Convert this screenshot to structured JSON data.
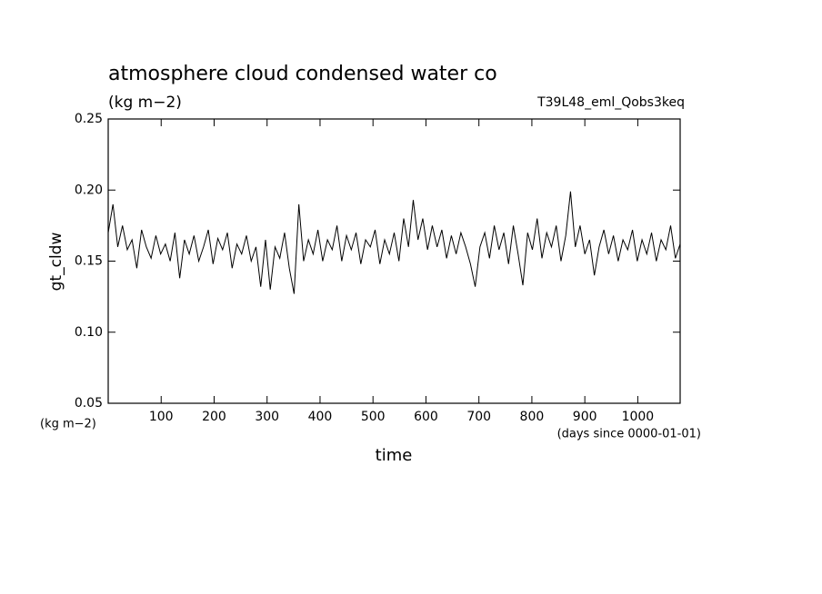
{
  "chart_data": {
    "type": "line",
    "title": "atmosphere cloud condensed water co",
    "subtitle": "(kg m−2)",
    "run_label": "T39L48_eml_Qobs3keq",
    "y_label": "gt_cldw",
    "x_label": "time",
    "y_unit": "(kg m−2)",
    "x_unit": "(days since 0000-01-01)",
    "xlim": [
      0,
      1080
    ],
    "ylim": [
      0.05,
      0.25
    ],
    "xticks": [
      100,
      200,
      300,
      400,
      500,
      600,
      700,
      800,
      900,
      1000
    ],
    "yticks": [
      0.05,
      {
        "value": 0.1,
        "label": "0.10"
      },
      0.15,
      {
        "value": 0.2,
        "label": "0.20"
      },
      0.25
    ],
    "x": [
      0,
      9,
      18,
      27,
      36,
      45,
      54,
      63,
      72,
      81,
      90,
      99,
      108,
      117,
      126,
      135,
      144,
      153,
      162,
      171,
      180,
      189,
      198,
      207,
      216,
      225,
      234,
      243,
      252,
      261,
      270,
      279,
      288,
      297,
      306,
      315,
      324,
      333,
      342,
      351,
      360,
      369,
      378,
      387,
      396,
      405,
      414,
      423,
      432,
      441,
      450,
      459,
      468,
      477,
      486,
      495,
      504,
      513,
      522,
      531,
      540,
      549,
      558,
      567,
      576,
      585,
      594,
      603,
      612,
      621,
      630,
      639,
      648,
      657,
      666,
      675,
      684,
      693,
      702,
      711,
      720,
      729,
      738,
      747,
      756,
      765,
      774,
      783,
      792,
      801,
      810,
      819,
      828,
      837,
      846,
      855,
      864,
      873,
      882,
      891,
      900,
      909,
      918,
      927,
      936,
      945,
      954,
      963,
      972,
      981,
      990,
      999,
      1008,
      1017,
      1026,
      1035,
      1044,
      1053,
      1062,
      1071,
      1080
    ],
    "series": [
      {
        "color": "#000000",
        "values": [
          0.17,
          0.19,
          0.16,
          0.175,
          0.158,
          0.165,
          0.145,
          0.172,
          0.16,
          0.152,
          0.168,
          0.155,
          0.162,
          0.15,
          0.17,
          0.138,
          0.165,
          0.155,
          0.168,
          0.15,
          0.16,
          0.172,
          0.148,
          0.166,
          0.158,
          0.17,
          0.145,
          0.162,
          0.155,
          0.168,
          0.15,
          0.16,
          0.132,
          0.165,
          0.13,
          0.16,
          0.152,
          0.17,
          0.145,
          0.127,
          0.19,
          0.15,
          0.165,
          0.155,
          0.172,
          0.15,
          0.165,
          0.158,
          0.175,
          0.15,
          0.168,
          0.158,
          0.17,
          0.148,
          0.165,
          0.16,
          0.172,
          0.148,
          0.165,
          0.155,
          0.17,
          0.15,
          0.18,
          0.16,
          0.193,
          0.165,
          0.18,
          0.158,
          0.175,
          0.16,
          0.172,
          0.152,
          0.168,
          0.155,
          0.17,
          0.16,
          0.148,
          0.132,
          0.16,
          0.17,
          0.152,
          0.175,
          0.158,
          0.17,
          0.148,
          0.175,
          0.155,
          0.133,
          0.17,
          0.158,
          0.18,
          0.152,
          0.17,
          0.16,
          0.175,
          0.15,
          0.168,
          0.199,
          0.16,
          0.175,
          0.155,
          0.165,
          0.14,
          0.16,
          0.172,
          0.155,
          0.168,
          0.15,
          0.165,
          0.158,
          0.172,
          0.15,
          0.165,
          0.155,
          0.17,
          0.15,
          0.165,
          0.158,
          0.175,
          0.152,
          0.162
        ]
      }
    ]
  }
}
